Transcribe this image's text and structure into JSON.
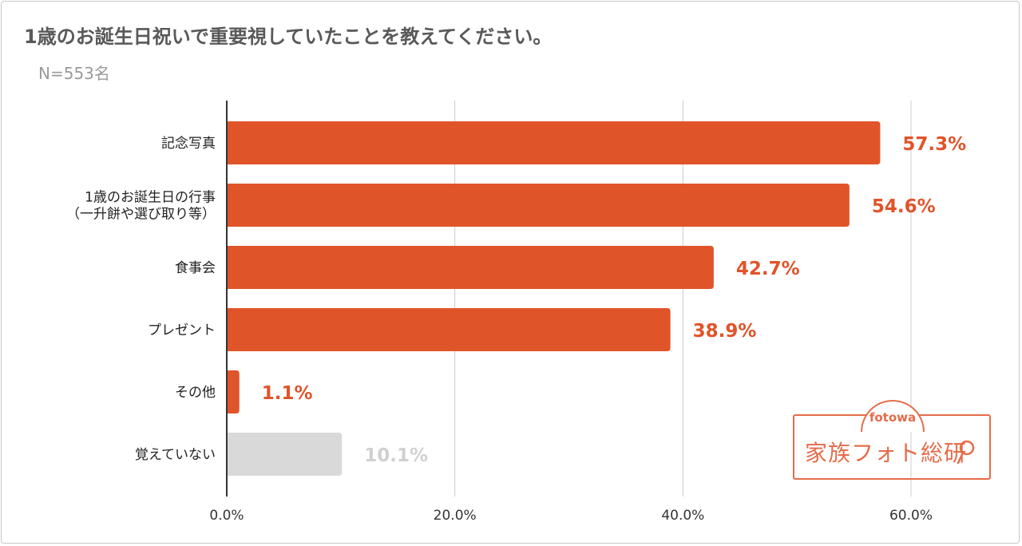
{
  "title": "1歳のお誕生日祝いで重要視していたことを教えてください。",
  "subtitle": "N=553名",
  "logo": {
    "small_text": "fotowa",
    "main_text": "家族フォト総研",
    "icon": "magnifier-icon",
    "color": "#e56c4a"
  },
  "colors": {
    "bar": "#e0542a",
    "bar_muted": "#d9d9d9",
    "label": "#e0542a",
    "label_muted": "#d0d0d0",
    "grid": "#cccccc",
    "axis": "#333333"
  },
  "chart_data": {
    "type": "bar",
    "orientation": "horizontal",
    "categories": [
      [
        "記念写真"
      ],
      [
        "1歳のお誕生日の行事",
        "（一升餅や選び取り等）"
      ],
      [
        "食事会"
      ],
      [
        "プレゼント"
      ],
      [
        "その他"
      ],
      [
        "覚えていない"
      ]
    ],
    "values": [
      57.3,
      54.6,
      42.7,
      38.9,
      1.1,
      10.1
    ],
    "value_labels": [
      "57.3%",
      "54.6%",
      "42.7%",
      "38.9%",
      "1.1%",
      "10.1%"
    ],
    "muted": [
      false,
      false,
      false,
      false,
      false,
      true
    ],
    "xlim": [
      0,
      60
    ],
    "xticks": [
      0,
      20,
      40,
      60
    ],
    "xtick_labels": [
      "0.0%",
      "20.0%",
      "40.0%",
      "60.0%"
    ],
    "grid": true,
    "legend": "none"
  }
}
